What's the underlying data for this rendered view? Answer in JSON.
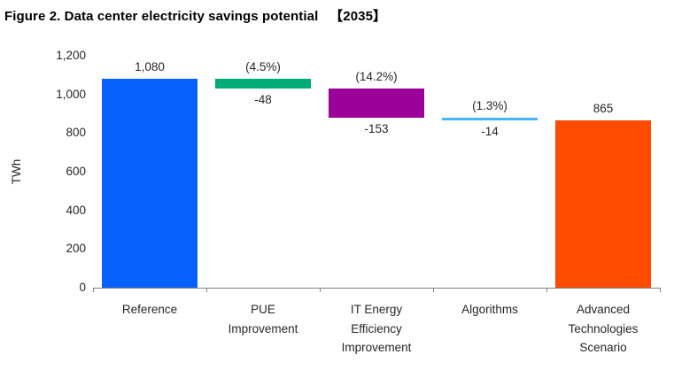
{
  "title": "Figure 2. Data center electricity savings potential   【2035】",
  "chart_data": {
    "type": "bar",
    "subtype": "waterfall",
    "title": "Figure 2. Data center electricity savings potential 【2035】",
    "xlabel": "",
    "ylabel": "TWh",
    "ylim": [
      0,
      1200
    ],
    "yticks": [
      0,
      200,
      400,
      600,
      800,
      1000,
      1200
    ],
    "ytick_labels": [
      "0",
      "200",
      "400",
      "600",
      "800",
      "1,000",
      "1,200"
    ],
    "grid": false,
    "legend": false,
    "categories": [
      "Reference",
      "PUE Improvement",
      "IT Energy Efficiency Improvement",
      "Algorithms",
      "Advanced Technologies Scenario"
    ],
    "bars": [
      {
        "category": "Reference",
        "base": 0,
        "top": 1080,
        "value": 1080,
        "label_above": "1,080",
        "label_below": "",
        "color": "#0560fc"
      },
      {
        "category": "PUE Improvement",
        "base": 1032,
        "top": 1080,
        "value": -48,
        "label_above": "(4.5%)",
        "label_below": "-48",
        "color": "#00ac75"
      },
      {
        "category": "IT Energy Efficiency Improvement",
        "base": 879,
        "top": 1032,
        "value": -153,
        "label_above": "(14.2%)",
        "label_below": "-153",
        "color": "#9b009b"
      },
      {
        "category": "Algorithms",
        "base": 865,
        "top": 879,
        "value": -14,
        "label_above": "(1.3%)",
        "label_below": "-14",
        "color": "#41b8f2"
      },
      {
        "category": "Advanced Technologies Scenario",
        "base": 0,
        "top": 865,
        "value": 865,
        "label_above": "865",
        "label_below": "",
        "color": "#ff4b00"
      }
    ],
    "colors": {
      "axis": "#808080",
      "text": "#262626",
      "title_text": "#000000"
    }
  }
}
